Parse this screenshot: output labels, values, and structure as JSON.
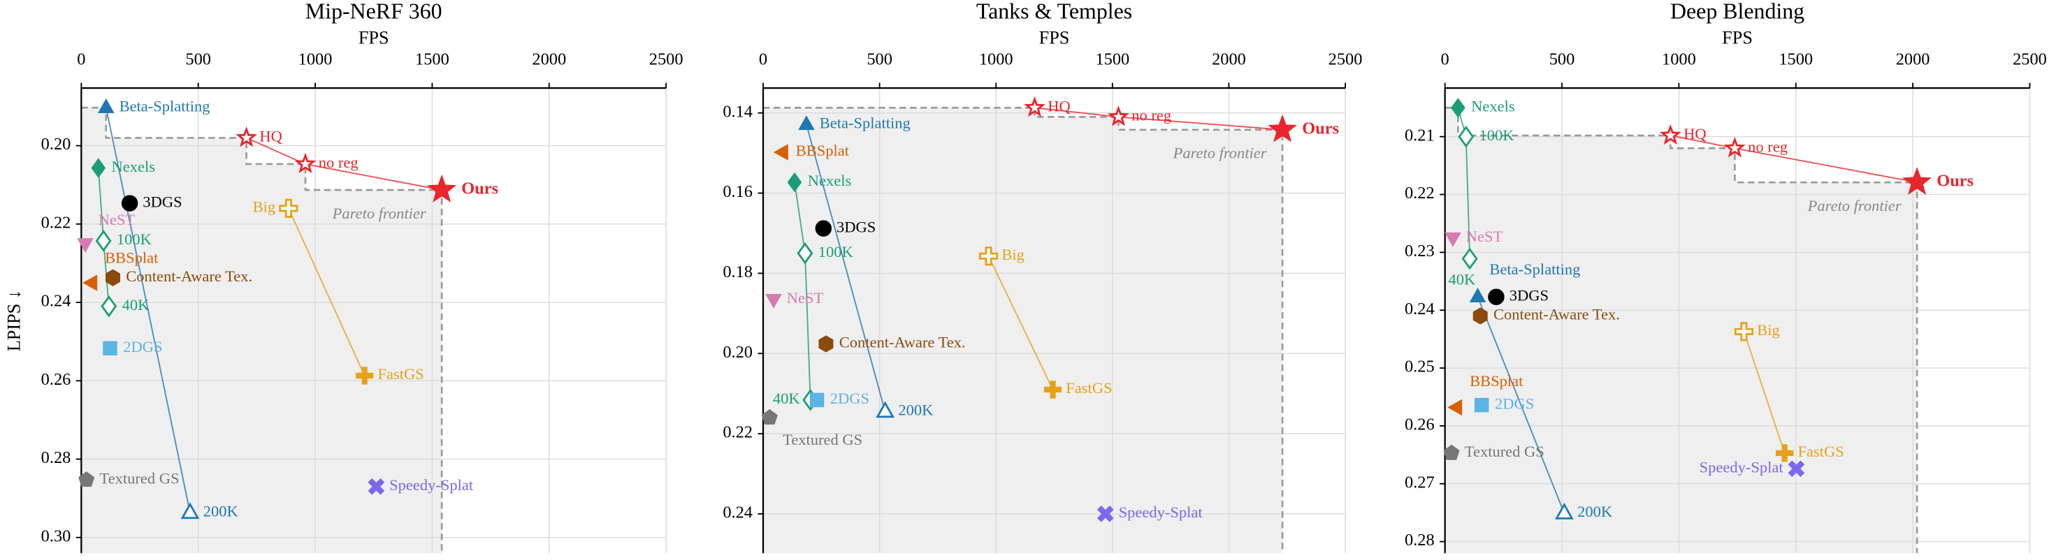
{
  "chart_data": [
    {
      "type": "scatter",
      "title": "Mip-NeRF 360",
      "xlabel": "FPS",
      "ylabel": "LPIPS ↓",
      "xlim": [
        0,
        2500
      ],
      "xticks": [
        0,
        500,
        1000,
        1500,
        2000,
        2500
      ],
      "ylim": [
        0.304,
        0.1853
      ],
      "yticks": [
        {
          "value": 0.2,
          "label": "0.20"
        },
        0.22,
        0.24,
        0.26,
        0.28,
        {
          "value": 0.3,
          "label": "0.30"
        }
      ],
      "grid": true,
      "annotation": "Pareto frontier",
      "series": [
        {
          "color": "#e8262b",
          "points": [
            {
              "label": "Ours",
              "x": 1541,
              "y": 0.2113,
              "marker": "star",
              "filled": true,
              "bold": true
            },
            {
              "label": "no reg",
              "x": 958,
              "y": 0.2047,
              "marker": "star",
              "filled": false
            },
            {
              "label": "HQ",
              "x": 706,
              "y": 0.198,
              "marker": "star",
              "filled": false
            }
          ]
        },
        {
          "color": "#1f78b4",
          "points": [
            {
              "label": "Beta-Splatting",
              "x": 106,
              "y": 0.1903,
              "marker": "triangle",
              "filled": true
            },
            {
              "label": "200K",
              "x": 465,
              "y": 0.2937,
              "marker": "triangle",
              "filled": false
            }
          ]
        },
        {
          "color": "#1b9e77",
          "points": [
            {
              "label": "Nexels",
              "x": 73,
              "y": 0.2057,
              "marker": "diamond",
              "filled": true
            },
            {
              "label": "100K",
              "x": 95,
              "y": 0.2243,
              "marker": "diamond",
              "filled": false
            },
            {
              "label": "40K",
              "x": 118,
              "y": 0.241,
              "marker": "diamond",
              "filled": false
            }
          ]
        },
        {
          "color": "#000000",
          "points": [
            {
              "label": "3DGS",
              "x": 207,
              "y": 0.2147,
              "marker": "circle",
              "filled": true
            }
          ]
        },
        {
          "color": "#e6a118",
          "points": [
            {
              "label": "Big",
              "x": 886,
              "y": 0.216,
              "marker": "plus",
              "filled": false
            },
            {
              "label": "FastGS",
              "x": 1211,
              "y": 0.2587,
              "marker": "plus",
              "filled": true
            }
          ]
        },
        {
          "color": "#d67bb0",
          "points": [
            {
              "label": "NeST",
              "x": 17,
              "y": 0.225,
              "marker": "triangle-down",
              "filled": true
            }
          ]
        },
        {
          "color": "#d95f02",
          "points": [
            {
              "label": "BBSplat",
              "x": 45,
              "y": 0.235,
              "marker": "triangle-left",
              "filled": true
            }
          ]
        },
        {
          "color": "#8c4a0c",
          "points": [
            {
              "label": "Content-Aware Tex.",
              "x": 135,
              "y": 0.2337,
              "marker": "hexagon",
              "filled": true
            }
          ]
        },
        {
          "color": "#5ab4e5",
          "points": [
            {
              "label": "2DGS",
              "x": 123,
              "y": 0.2517,
              "marker": "square",
              "filled": true
            }
          ]
        },
        {
          "color": "#777777",
          "points": [
            {
              "label": "Textured GS",
              "x": 22,
              "y": 0.2853,
              "marker": "pentagon",
              "filled": true
            }
          ]
        },
        {
          "color": "#7b68ee",
          "points": [
            {
              "label": "Speedy-Splat",
              "x": 1261,
              "y": 0.287,
              "marker": "cross",
              "filled": true
            }
          ]
        }
      ]
    },
    {
      "type": "scatter",
      "title": "Tanks & Temples",
      "xlabel": "FPS",
      "xlim": [
        0,
        2500
      ],
      "xticks": [
        0,
        500,
        1000,
        1500,
        2000,
        2500
      ],
      "ylim": [
        0.2498,
        0.1338
      ],
      "yticks": [
        0.14,
        0.16,
        0.18,
        {
          "value": 0.2,
          "label": "0.20"
        },
        0.22,
        0.24
      ],
      "grid": true,
      "annotation": "Pareto frontier",
      "series": [
        {
          "color": "#e8262b",
          "points": [
            {
              "label": "Ours",
              "x": 2230,
              "y": 0.1442,
              "marker": "star",
              "filled": true,
              "bold": true
            },
            {
              "label": "no reg",
              "x": 1526,
              "y": 0.141,
              "marker": "star",
              "filled": false
            },
            {
              "label": "HQ",
              "x": 1166,
              "y": 0.1387,
              "marker": "star",
              "filled": false
            }
          ]
        },
        {
          "color": "#1f78b4",
          "points": [
            {
              "label": "Beta-Splatting",
              "x": 186,
              "y": 0.1429,
              "marker": "triangle",
              "filled": true
            },
            {
              "label": "200K",
              "x": 524,
              "y": 0.2145,
              "marker": "triangle",
              "filled": false
            }
          ]
        },
        {
          "color": "#1b9e77",
          "points": [
            {
              "label": "Nexels",
              "x": 135,
              "y": 0.1573,
              "marker": "diamond",
              "filled": true
            },
            {
              "label": "100K",
              "x": 180,
              "y": 0.175,
              "marker": "diamond",
              "filled": false
            },
            {
              "label": "40K",
              "x": 203,
              "y": 0.2116,
              "marker": "diamond",
              "filled": false
            }
          ]
        },
        {
          "color": "#000000",
          "points": [
            {
              "label": "3DGS",
              "x": 259,
              "y": 0.1688,
              "marker": "circle",
              "filled": true
            }
          ]
        },
        {
          "color": "#e6a118",
          "points": [
            {
              "label": "Big",
              "x": 968,
              "y": 0.1757,
              "marker": "plus",
              "filled": false
            },
            {
              "label": "FastGS",
              "x": 1244,
              "y": 0.209,
              "marker": "plus",
              "filled": true
            }
          ]
        },
        {
          "color": "#d67bb0",
          "points": [
            {
              "label": "NeST",
              "x": 45,
              "y": 0.1865,
              "marker": "triangle-down",
              "filled": true
            }
          ]
        },
        {
          "color": "#d95f02",
          "points": [
            {
              "label": "BBSplat",
              "x": 84,
              "y": 0.1498,
              "marker": "triangle-left",
              "filled": true
            }
          ]
        },
        {
          "color": "#8c4a0c",
          "points": [
            {
              "label": "Content-Aware Tex.",
              "x": 270,
              "y": 0.1976,
              "marker": "hexagon",
              "filled": true
            }
          ]
        },
        {
          "color": "#5ab4e5",
          "points": [
            {
              "label": "2DGS",
              "x": 231,
              "y": 0.2116,
              "marker": "square",
              "filled": true
            }
          ]
        },
        {
          "color": "#777777",
          "points": [
            {
              "label": "Textured GS",
              "x": 28,
              "y": 0.216,
              "marker": "pentagon",
              "filled": true
            }
          ]
        },
        {
          "color": "#7b68ee",
          "points": [
            {
              "label": "Speedy-Splat",
              "x": 1470,
              "y": 0.24,
              "marker": "cross",
              "filled": true
            }
          ]
        }
      ]
    },
    {
      "type": "scatter",
      "title": "Deep Blending",
      "xlabel": "FPS",
      "xlim": [
        0,
        2500
      ],
      "xticks": [
        0,
        500,
        1000,
        1500,
        2000,
        2500
      ],
      "ylim": [
        0.282,
        0.2016
      ],
      "yticks": [
        0.21,
        0.22,
        0.23,
        0.24,
        0.25,
        0.26,
        0.27,
        0.28
      ],
      "grid": true,
      "annotation": "Pareto frontier",
      "series": [
        {
          "color": "#e8262b",
          "points": [
            {
              "label": "Ours",
              "x": 2018,
              "y": 0.2179,
              "marker": "star",
              "filled": true,
              "bold": true
            },
            {
              "label": "no reg",
              "x": 1239,
              "y": 0.212,
              "marker": "star",
              "filled": false
            },
            {
              "label": "HQ",
              "x": 964,
              "y": 0.2098,
              "marker": "star",
              "filled": false
            }
          ]
        },
        {
          "color": "#1f78b4",
          "points": [
            {
              "label": "Beta-Splatting",
              "x": 140,
              "y": 0.2377,
              "marker": "triangle",
              "filled": true
            },
            {
              "label": "200K",
              "x": 510,
              "y": 0.2751,
              "marker": "triangle",
              "filled": false
            }
          ]
        },
        {
          "color": "#1b9e77",
          "points": [
            {
              "label": "Nexels",
              "x": 56,
              "y": 0.205,
              "marker": "diamond",
              "filled": true
            },
            {
              "label": "100K",
              "x": 90,
              "y": 0.21,
              "marker": "diamond",
              "filled": false
            },
            {
              "label": "40K",
              "x": 106,
              "y": 0.2311,
              "marker": "diamond",
              "filled": false
            }
          ]
        },
        {
          "color": "#000000",
          "points": [
            {
              "label": "3DGS",
              "x": 219,
              "y": 0.2377,
              "marker": "circle",
              "filled": true
            }
          ]
        },
        {
          "color": "#e6a118",
          "points": [
            {
              "label": "Big",
              "x": 1278,
              "y": 0.2437,
              "marker": "plus",
              "filled": false
            },
            {
              "label": "FastGS",
              "x": 1452,
              "y": 0.2647,
              "marker": "plus",
              "filled": true
            }
          ]
        },
        {
          "color": "#d67bb0",
          "points": [
            {
              "label": "NeST",
              "x": 34,
              "y": 0.2275,
              "marker": "triangle-down",
              "filled": true
            }
          ]
        },
        {
          "color": "#d95f02",
          "points": [
            {
              "label": "BBSplat",
              "x": 50,
              "y": 0.2568,
              "marker": "triangle-left",
              "filled": true
            }
          ]
        },
        {
          "color": "#8c4a0c",
          "points": [
            {
              "label": "Content-Aware Tex.",
              "x": 151,
              "y": 0.241,
              "marker": "hexagon",
              "filled": true
            }
          ]
        },
        {
          "color": "#5ab4e5",
          "points": [
            {
              "label": "2DGS",
              "x": 157,
              "y": 0.2564,
              "marker": "square",
              "filled": true
            }
          ]
        },
        {
          "color": "#777777",
          "points": [
            {
              "label": "Textured GS",
              "x": 28,
              "y": 0.2647,
              "marker": "pentagon",
              "filled": true
            }
          ]
        },
        {
          "color": "#7b68ee",
          "points": [
            {
              "label": "Speedy-Splat",
              "x": 1502,
              "y": 0.2674,
              "marker": "cross",
              "filled": true
            }
          ]
        }
      ]
    }
  ]
}
